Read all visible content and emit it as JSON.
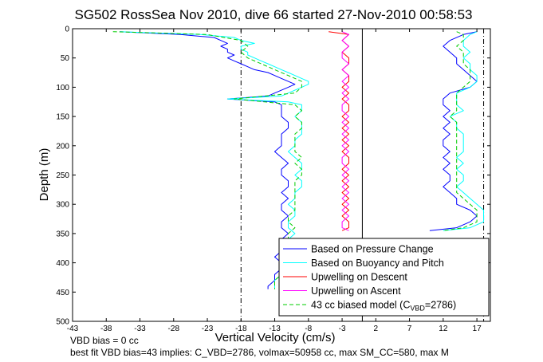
{
  "chart_data": {
    "type": "line",
    "title": "SG502 RossSea Nov 2010, dive 66 started 27-Nov-2010 00:58:53",
    "xlabel": "Vertical Velocity (cm/s)",
    "ylabel": "Depth (m)",
    "xlim": [
      -43,
      19
    ],
    "ylim": [
      500,
      0
    ],
    "x_ticks": [
      -43,
      -38,
      -33,
      -28,
      -23,
      -18,
      -13,
      -8,
      -3,
      2,
      7,
      12,
      17
    ],
    "y_ticks": [
      0,
      50,
      100,
      150,
      200,
      250,
      300,
      350,
      400,
      450,
      500
    ],
    "grid": false,
    "legend_position": "bottom-right",
    "reference_lines": {
      "dashdot_verticals": [
        -18,
        18
      ],
      "solid_vertical": 0
    },
    "series": [
      {
        "name": "Based on Pressure Change",
        "color": "#0000ff",
        "segments": [
          {
            "depth": [
              5,
              10,
              15,
              20,
              25,
              30,
              35,
              40,
              45,
              50,
              55,
              60,
              65,
              70,
              75,
              80,
              85,
              90,
              95,
              100,
              105,
              110,
              115,
              120,
              125,
              130,
              140,
              150,
              160,
              170,
              180,
              190,
              200,
              210,
              220,
              230,
              240,
              250,
              260,
              270,
              280,
              290,
              300,
              310,
              320,
              330,
              340,
              350,
              360,
              370,
              380,
              390,
              400,
              410,
              420,
              430,
              440,
              445
            ],
            "velocity": [
              -36,
              -27,
              -22,
              -21,
              -20,
              -21,
              -20,
              -20,
              -19,
              -20,
              -19,
              -18,
              -17,
              -16,
              -14,
              -13,
              -12,
              -11,
              -10,
              -11,
              -12,
              -13,
              -14,
              -20,
              -13,
              -12,
              -12,
              -12,
              -11,
              -11,
              -12,
              -12,
              -12,
              -13,
              -12,
              -11,
              -12,
              -12,
              -11,
              -11,
              -12,
              -11,
              -12,
              -12,
              -11,
              -12,
              -12,
              -11,
              -12,
              -12,
              -12,
              -13,
              -12,
              -12,
              -13,
              -13,
              -14,
              -14
            ]
          },
          {
            "depth": [
              5,
              10,
              20,
              30,
              40,
              50,
              60,
              70,
              80,
              90,
              100,
              110,
              120,
              130,
              140,
              150,
              160,
              170,
              180,
              190,
              200,
              210,
              220,
              230,
              240,
              250,
              260,
              270,
              280,
              290,
              300,
              310,
              320,
              330,
              340,
              345
            ],
            "velocity": [
              17,
              15,
              13,
              12,
              13,
              14,
              14,
              15,
              16,
              17,
              16,
              13,
              12,
              12,
              13,
              12,
              13,
              12,
              13,
              12,
              12,
              13,
              12,
              13,
              12,
              13,
              13,
              12,
              13,
              14,
              14,
              16,
              17,
              16,
              14,
              10
            ]
          }
        ]
      },
      {
        "name": "Based on Buoyancy and Pitch",
        "color": "#00ffff",
        "segments": [
          {
            "depth": [
              5,
              10,
              15,
              20,
              25,
              30,
              35,
              40,
              45,
              50,
              55,
              60,
              65,
              70,
              75,
              80,
              85,
              90,
              95,
              100,
              105,
              110,
              115,
              120,
              125,
              130,
              140,
              150,
              160,
              170,
              180,
              190,
              200,
              210,
              220,
              230,
              240,
              250,
              260,
              270,
              280,
              290,
              300,
              310,
              320,
              330,
              340,
              350,
              360,
              370,
              380,
              390,
              400,
              410,
              420,
              430,
              440,
              445
            ],
            "velocity": [
              -36,
              -24,
              -19,
              -18,
              -16,
              -18,
              -18,
              -17,
              -17,
              -16,
              -15,
              -14,
              -13,
              -12,
              -11,
              -10,
              -9,
              -8,
              -8,
              -9,
              -10,
              -11,
              -12,
              -20,
              -11,
              -9,
              -9,
              -10,
              -9,
              -9,
              -9,
              -10,
              -10,
              -11,
              -10,
              -9,
              -9,
              -10,
              -9,
              -9,
              -10,
              -10,
              -11,
              -10,
              -10,
              -11,
              -11,
              -10,
              -11,
              -11,
              -12,
              -12,
              -11,
              -12,
              -12,
              -13,
              -13,
              -13
            ]
          },
          {
            "depth": [
              5,
              10,
              20,
              30,
              40,
              50,
              60,
              70,
              80,
              90,
              100,
              110,
              120,
              130,
              140,
              150,
              160,
              170,
              180,
              190,
              200,
              210,
              220,
              230,
              240,
              250,
              260,
              270,
              280,
              290,
              300,
              310,
              320,
              330,
              340,
              345
            ],
            "velocity": [
              17,
              16,
              15,
              15,
              16,
              15,
              16,
              16,
              17,
              17,
              16,
              14,
              14,
              14,
              15,
              13,
              14,
              14,
              15,
              15,
              15,
              15,
              14,
              15,
              14,
              15,
              15,
              14,
              15,
              16,
              17,
              18,
              18,
              18,
              16,
              12
            ]
          }
        ]
      },
      {
        "name": "Upwelling on Descent",
        "color": "#ff0000",
        "segments": [
          {
            "depth": [
              5,
              10,
              20,
              30,
              40,
              50,
              60,
              70,
              80,
              90,
              100,
              110,
              120,
              130,
              140,
              150,
              160,
              170,
              180,
              190,
              200,
              210,
              220,
              230,
              240,
              250,
              260,
              270,
              280,
              290,
              300,
              310,
              320,
              330,
              340,
              345
            ],
            "velocity": [
              -5,
              -2,
              -3,
              -2,
              -3,
              -2,
              -2,
              -3,
              -2,
              -2,
              -3,
              -2,
              -3,
              -2,
              -2,
              -3,
              -2,
              -3,
              -2,
              -3,
              -2,
              -3,
              -2,
              -2,
              -3,
              -2,
              -3,
              -2,
              -3,
              -2,
              -3,
              -2,
              -3,
              -2,
              -2,
              -3
            ]
          }
        ]
      },
      {
        "name": "Upwelling on Ascent",
        "color": "#ff00ff",
        "segments": [
          {
            "depth": [
              5,
              10,
              20,
              30,
              40,
              50,
              60,
              70,
              80,
              90,
              100,
              110,
              120,
              130,
              140,
              150,
              160,
              170,
              180,
              190,
              200,
              210,
              220,
              230,
              240,
              250,
              260,
              270,
              280,
              290,
              300,
              310,
              320,
              330,
              340,
              345
            ],
            "velocity": [
              -3,
              -2,
              -3,
              -2,
              -3,
              -3,
              -2,
              -3,
              -2,
              -3,
              -2,
              -3,
              -2,
              -3,
              -3,
              -2,
              -3,
              -2,
              -3,
              -2,
              -3,
              -2,
              -3,
              -3,
              -2,
              -3,
              -2,
              -3,
              -2,
              -3,
              -2,
              -3,
              -2,
              -3,
              -3,
              -2
            ]
          }
        ]
      },
      {
        "name": "43 cc biased model (C",
        "name_subscript": "VBD",
        "name_suffix": "=2786)",
        "color": "#00cc00",
        "dashed": true,
        "segments": [
          {
            "depth": [
              5,
              10,
              20,
              30,
              40,
              50,
              60,
              70,
              80,
              90,
              100,
              110,
              120,
              130,
              140,
              150,
              160,
              170,
              180,
              190,
              200,
              210,
              220,
              230,
              240,
              250,
              260,
              270,
              280,
              290,
              300,
              310,
              320,
              330,
              340,
              350,
              360,
              370,
              380,
              390,
              400,
              410,
              420,
              430,
              440,
              445
            ],
            "velocity": [
              -37,
              -23,
              -18,
              -17,
              -18,
              -17,
              -15,
              -13,
              -11,
              -9,
              -9,
              -10,
              -19,
              -10,
              -9,
              -10,
              -9,
              -9,
              -10,
              -10,
              -10,
              -10,
              -9,
              -10,
              -9,
              -9,
              -10,
              -10,
              -10,
              -10,
              -10,
              -10,
              -11,
              -11,
              -10,
              -11,
              -11,
              -11,
              -11,
              -12,
              -12,
              -12,
              -12,
              -13,
              -13,
              -13
            ]
          },
          {
            "depth": [
              5,
              10,
              20,
              30,
              40,
              50,
              60,
              70,
              80,
              90,
              100,
              110,
              120,
              130,
              140,
              150,
              160,
              170,
              180,
              190,
              200,
              210,
              220,
              230,
              240,
              250,
              260,
              270,
              280,
              290,
              300,
              310,
              320,
              330,
              340,
              345
            ],
            "velocity": [
              14,
              15,
              15,
              14,
              15,
              15,
              15,
              16,
              16,
              16,
              15,
              14,
              14,
              14,
              14,
              13,
              14,
              14,
              14,
              14,
              14,
              14,
              14,
              14,
              14,
              14,
              14,
              14,
              14,
              15,
              16,
              17,
              17,
              17,
              15,
              12
            ]
          }
        ]
      }
    ]
  },
  "footnote": {
    "line1": "VBD bias = 0 cc",
    "line2": "best fit VBD bias=43 implies: C_VBD=2786, volmax=50958 cc, max SM_CC=580, max M"
  }
}
